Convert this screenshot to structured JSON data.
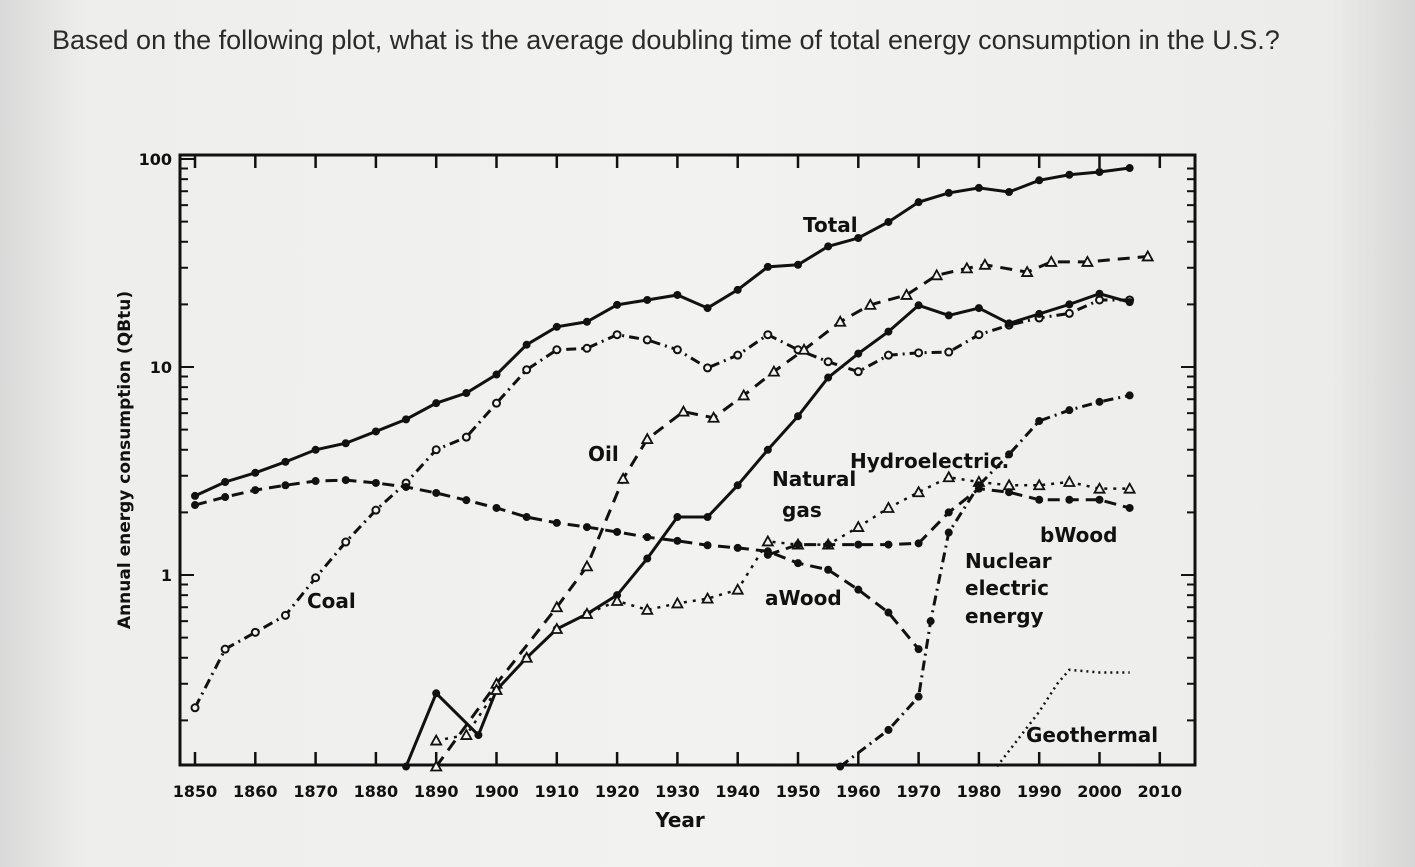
{
  "question": "Based on the following plot, what is the average doubling time of total energy consumption in the U.S.?",
  "chart_data": {
    "type": "line",
    "title": "",
    "xlabel": "Year",
    "ylabel": "Annual energy consumption (QBtu)",
    "xlim": [
      1850,
      2010
    ],
    "ylim": [
      0.12,
      100
    ],
    "yscale": "log",
    "grid": false,
    "x_ticks": [
      "1850",
      "1860",
      "1870",
      "1880",
      "1890",
      "1900",
      "1910",
      "1920",
      "1930",
      "1940",
      "1950",
      "1960",
      "1970",
      "1980",
      "1990",
      "2000",
      "2010"
    ],
    "y_ticks": [
      "100",
      "10",
      "1"
    ],
    "series": [
      {
        "name": "Total",
        "style": "solid-dot",
        "x": [
          1850,
          1855,
          1860,
          1865,
          1870,
          1875,
          1880,
          1885,
          1890,
          1895,
          1900,
          1905,
          1910,
          1915,
          1920,
          1925,
          1930,
          1935,
          1940,
          1945,
          1950,
          1955,
          1960,
          1965,
          1970,
          1975,
          1980,
          1985,
          1990,
          1995,
          2000,
          2005
        ],
        "y": [
          2.4,
          2.8,
          3.1,
          3.5,
          4.0,
          4.3,
          4.9,
          5.6,
          6.7,
          7.5,
          9.2,
          12.8,
          15.6,
          16.5,
          19.9,
          21,
          22.2,
          19.2,
          23.5,
          30.3,
          31,
          38,
          41.7,
          49.8,
          62,
          68.7,
          72.6,
          69.4,
          79,
          84,
          86.6,
          90.5
        ]
      },
      {
        "name": "Coal",
        "style": "dashdot-circle",
        "x": [
          1850,
          1855,
          1860,
          1865,
          1870,
          1875,
          1880,
          1885,
          1890,
          1895,
          1900,
          1905,
          1910,
          1915,
          1920,
          1925,
          1930,
          1935,
          1940,
          1945,
          1950,
          1955,
          1960,
          1965,
          1970,
          1975,
          1980,
          1985,
          1990,
          1995,
          2000,
          2005
        ],
        "y": [
          0.23,
          0.44,
          0.53,
          0.64,
          0.97,
          1.44,
          2.05,
          2.77,
          4.0,
          4.6,
          6.7,
          9.7,
          12.1,
          12.3,
          14.3,
          13.5,
          12.1,
          9.9,
          11.4,
          14.3,
          12.1,
          10.6,
          9.5,
          11.4,
          11.7,
          11.8,
          14.3,
          15.9,
          17.2,
          18.1,
          21,
          21
        ]
      },
      {
        "name": "Oil",
        "style": "dashed-triangle",
        "x": [
          1890,
          1900,
          1910,
          1915,
          1921,
          1925,
          1931,
          1936,
          1941,
          1946,
          1951,
          1957,
          1962,
          1968,
          1973,
          1978,
          1981,
          1988,
          1992,
          1998,
          2008
        ],
        "y": [
          0.12,
          0.3,
          0.7,
          1.1,
          2.9,
          4.5,
          6.1,
          5.7,
          7.3,
          9.5,
          12.1,
          16.5,
          19.9,
          22.2,
          27.6,
          29.8,
          31,
          28.6,
          32,
          32,
          34
        ]
      },
      {
        "name": "Natural gas",
        "style": "solid-dot",
        "x": [
          1885,
          1890,
          1897,
          1900,
          1905,
          1910,
          1915,
          1920,
          1925,
          1930,
          1935,
          1940,
          1945,
          1950,
          1955,
          1960,
          1965,
          1970,
          1975,
          1980,
          1985,
          1990,
          1995,
          2000,
          2005
        ],
        "y": [
          0.12,
          0.27,
          0.17,
          0.28,
          0.4,
          0.55,
          0.65,
          0.8,
          1.2,
          1.9,
          1.9,
          2.7,
          4.0,
          5.8,
          8.9,
          11.6,
          14.8,
          19.8,
          17.7,
          19.2,
          16.2,
          18,
          20,
          22.5,
          20.5
        ]
      },
      {
        "name": "Hydroelectric",
        "style": "dotted-triangle",
        "x": [
          1890,
          1895,
          1900,
          1905,
          1910,
          1915,
          1920,
          1925,
          1930,
          1935,
          1940,
          1945,
          1950,
          1955,
          1960,
          1965,
          1970,
          1975,
          1980,
          1985,
          1990,
          1995,
          2000,
          2005
        ],
        "y": [
          0.16,
          0.17,
          0.28,
          0.4,
          0.55,
          0.65,
          0.75,
          0.68,
          0.73,
          0.77,
          0.85,
          1.45,
          1.4,
          1.4,
          1.7,
          2.1,
          2.5,
          2.95,
          2.8,
          2.7,
          2.7,
          2.8,
          2.6,
          2.6
        ]
      },
      {
        "name": "aWood",
        "style": "dashed-dot",
        "x": [
          1850,
          1855,
          1860,
          1865,
          1870,
          1875,
          1880,
          1885,
          1890,
          1895,
          1900,
          1905,
          1910,
          1915,
          1920,
          1925,
          1930,
          1935,
          1940,
          1945,
          1950,
          1955,
          1960,
          1965,
          1970
        ],
        "y": [
          2.17,
          2.37,
          2.56,
          2.7,
          2.83,
          2.86,
          2.77,
          2.65,
          2.48,
          2.29,
          2.1,
          1.9,
          1.78,
          1.7,
          1.61,
          1.52,
          1.46,
          1.39,
          1.35,
          1.3,
          1.14,
          1.06,
          0.85,
          0.66,
          0.44
        ]
      },
      {
        "name": "bWood",
        "style": "dashed-dot",
        "x": [
          1945,
          1950,
          1955,
          1960,
          1965,
          1970,
          1975,
          1980,
          1985,
          1990,
          1995,
          2000,
          2005
        ],
        "y": [
          1.25,
          1.4,
          1.4,
          1.4,
          1.4,
          1.42,
          2.0,
          2.6,
          2.5,
          2.3,
          2.3,
          2.3,
          2.1
        ]
      },
      {
        "name": "Nuclear electric energy",
        "style": "dashdot-solid",
        "x": [
          1957,
          1965,
          1970,
          1972,
          1975,
          1980,
          1985,
          1990,
          1995,
          2000,
          2005
        ],
        "y": [
          0.12,
          0.18,
          0.26,
          0.6,
          1.6,
          2.7,
          3.8,
          5.5,
          6.2,
          6.8,
          7.3
        ]
      },
      {
        "name": "Geothermal",
        "style": "dotted",
        "x": [
          1983,
          1990,
          1993,
          1995,
          2000,
          2005
        ],
        "y": [
          0.12,
          0.22,
          0.3,
          0.35,
          0.34,
          0.34
        ]
      }
    ],
    "annotations": [
      "Total",
      "Oil",
      "Natural",
      "gas",
      "Hydroelectric.",
      "aWood",
      "bWood",
      "Coal",
      "Nuclear",
      "electric",
      "energy",
      "Geothermal"
    ]
  }
}
